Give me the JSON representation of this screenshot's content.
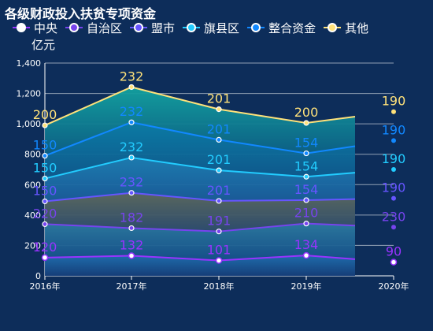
{
  "chart_data": {
    "type": "line",
    "title": "各级财政投入扶贫专项资金",
    "ylabel": "亿元",
    "xlabel": "",
    "categories": [
      "2016年",
      "2017年",
      "2018年",
      "2019年",
      "2020年"
    ],
    "ylim": [
      0,
      1400
    ],
    "yticks": [
      0,
      200,
      400,
      600,
      800,
      1000,
      1200,
      1400
    ],
    "ytick_labels": [
      "0",
      "200",
      "400",
      "600",
      "800",
      "1,000",
      "1,200",
      "1,400"
    ],
    "stacked": true,
    "grid": true,
    "legend_position": "top",
    "series": [
      {
        "name": "中央",
        "values": [
          120,
          132,
          101,
          134,
          90
        ],
        "color": "#9933ff"
      },
      {
        "name": "自治区",
        "values": [
          220,
          182,
          191,
          210,
          230
        ],
        "color": "#7744ee"
      },
      {
        "name": "盟市",
        "values": [
          150,
          232,
          201,
          154,
          190
        ],
        "color": "#6655ff"
      },
      {
        "name": "旗县区",
        "values": [
          150,
          232,
          201,
          154,
          190
        ],
        "color": "#22ccff"
      },
      {
        "name": "整合资金",
        "values": [
          150,
          232,
          201,
          154,
          190
        ],
        "color": "#1188ff"
      },
      {
        "name": "其他",
        "values": [
          200,
          232,
          201,
          200,
          190
        ],
        "color": "#ffe27a"
      }
    ]
  }
}
